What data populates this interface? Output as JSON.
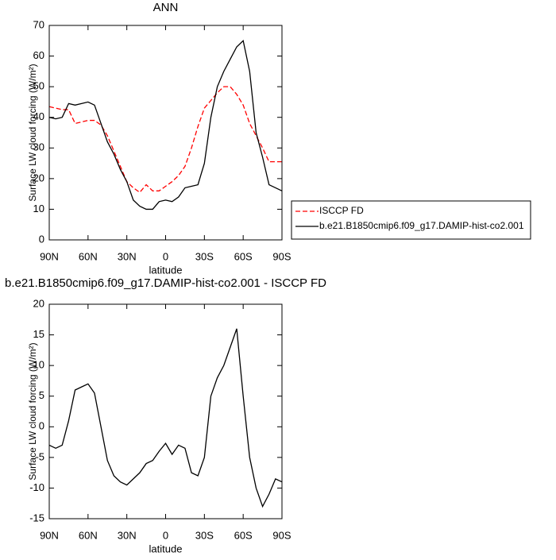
{
  "chart_data": [
    {
      "type": "line",
      "title": "ANN",
      "xlabel": "latitude",
      "ylabel": "Surface LW cloud forcing (W/m²)",
      "x": [
        90,
        85,
        80,
        75,
        70,
        65,
        60,
        55,
        50,
        45,
        40,
        35,
        30,
        25,
        20,
        15,
        10,
        5,
        0,
        -5,
        -10,
        -15,
        -20,
        -25,
        -30,
        -35,
        -40,
        -45,
        -50,
        -55,
        -60,
        -65,
        -70,
        -75,
        -80,
        -85,
        -90
      ],
      "xlim": [
        90,
        -90
      ],
      "xticks": [
        {
          "value": 90,
          "label": "90N"
        },
        {
          "value": 60,
          "label": "60N"
        },
        {
          "value": 30,
          "label": "30N"
        },
        0,
        {
          "value": -30,
          "label": "30S"
        },
        {
          "value": -60,
          "label": "60S"
        },
        {
          "value": -90,
          "label": "90S"
        }
      ],
      "ylim": [
        0,
        70
      ],
      "yticks": [
        0,
        10,
        20,
        30,
        40,
        50,
        60,
        70
      ],
      "legend": "right",
      "series": [
        {
          "name": "ISCCP FD",
          "color": "#ff0000",
          "style": "dashed",
          "values": [
            43.5,
            43,
            42.5,
            42.5,
            38,
            38.5,
            39,
            39,
            37.5,
            34,
            29,
            24,
            19,
            17,
            15.5,
            18,
            16,
            16,
            17.5,
            19,
            21,
            24,
            30,
            37,
            43,
            45.5,
            48,
            50,
            50,
            47.5,
            44,
            38,
            34,
            30,
            25.5,
            25.5,
            25.5
          ]
        },
        {
          "name": "b.e21.B1850cmip6.f09_g17.DAMIP-hist-co2.001",
          "color": "#000000",
          "style": "solid",
          "values": [
            40,
            39.5,
            40,
            44.5,
            44,
            44.5,
            45,
            44,
            38,
            32,
            28,
            23,
            19,
            13,
            11,
            10,
            10,
            12.5,
            13,
            12.5,
            14,
            17,
            17.5,
            18,
            25,
            40,
            50,
            55,
            59,
            63,
            65,
            55,
            35,
            27,
            18,
            17,
            16
          ]
        }
      ]
    },
    {
      "type": "line",
      "title": "b.e21.B1850cmip6.f09_g17.DAMIP-hist-co2.001 - ISCCP FD",
      "xlabel": "latitude",
      "ylabel": "Surface LW cloud forcing (W/m²)",
      "x": [
        90,
        85,
        80,
        75,
        70,
        65,
        60,
        55,
        50,
        45,
        40,
        35,
        30,
        25,
        20,
        15,
        10,
        5,
        0,
        -5,
        -10,
        -15,
        -20,
        -25,
        -30,
        -35,
        -40,
        -45,
        -50,
        -55,
        -60,
        -65,
        -70,
        -75,
        -80,
        -85,
        -90
      ],
      "xlim": [
        90,
        -90
      ],
      "xticks": [
        {
          "value": 90,
          "label": "90N"
        },
        {
          "value": 60,
          "label": "60N"
        },
        {
          "value": 30,
          "label": "30N"
        },
        0,
        {
          "value": -30,
          "label": "30S"
        },
        {
          "value": -60,
          "label": "60S"
        },
        {
          "value": -90,
          "label": "90S"
        }
      ],
      "ylim": [
        -15,
        20
      ],
      "yticks": [
        -15,
        -10,
        -5,
        0,
        5,
        10,
        15,
        20
      ],
      "series": [
        {
          "color": "#000000",
          "style": "solid",
          "values": [
            -3,
            -3.5,
            -3,
            1,
            6,
            6.5,
            7,
            5.5,
            0,
            -5.5,
            -8,
            -9,
            -9.5,
            -8.5,
            -7.5,
            -6,
            -5.5,
            -4,
            -2.7,
            -4.5,
            -3,
            -3.5,
            -7.5,
            -8,
            -5,
            5,
            8,
            10,
            13,
            16,
            5,
            -5,
            -10,
            -13,
            -11,
            -8.5,
            -9
          ]
        }
      ]
    }
  ]
}
